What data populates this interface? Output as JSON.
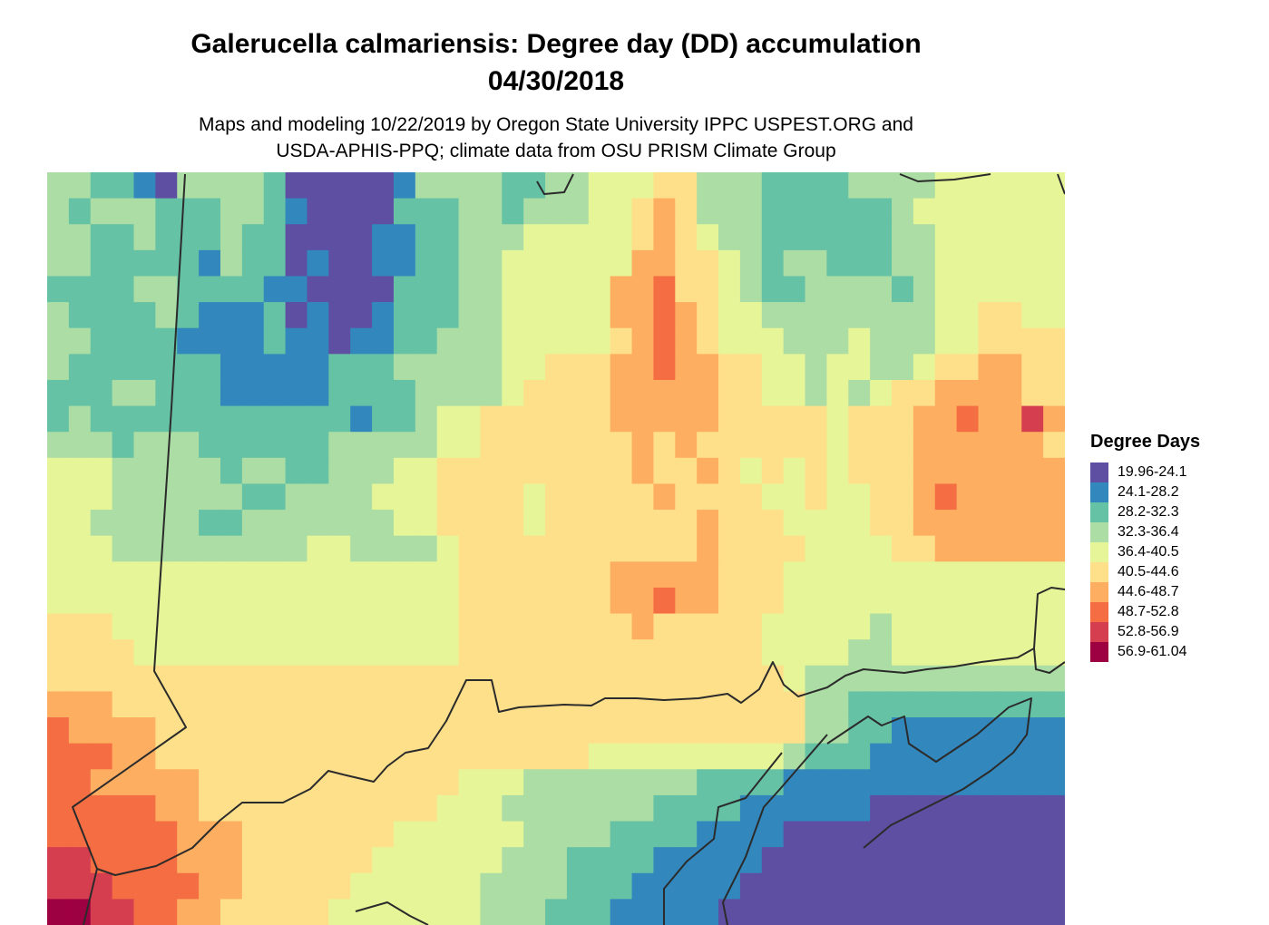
{
  "header": {
    "title_line1": "Galerucella calmariensis: Degree day (DD) accumulation",
    "title_line2": "04/30/2018",
    "subtitle_line1": "Maps and modeling 10/22/2019 by Oregon State University IPPC USPEST.ORG and",
    "subtitle_line2": "USDA-APHIS-PPQ; climate data from OSU PRISM Climate Group"
  },
  "legend": {
    "title": "Degree Days",
    "items": [
      {
        "label": "19.96-24.1",
        "color": "#5E4FA2"
      },
      {
        "label": "24.1-28.2",
        "color": "#3288BD"
      },
      {
        "label": "28.2-32.3",
        "color": "#66C2A5"
      },
      {
        "label": "32.3-36.4",
        "color": "#ABDDA4"
      },
      {
        "label": "36.4-40.5",
        "color": "#E6F598"
      },
      {
        "label": "40.5-44.6",
        "color": "#FEE08B"
      },
      {
        "label": "44.6-48.7",
        "color": "#FDAE61"
      },
      {
        "label": "48.7-52.8",
        "color": "#F46D43"
      },
      {
        "label": "52.8-56.9",
        "color": "#D53E4F"
      },
      {
        "label": "56.9-61.04",
        "color": "#9E0142"
      }
    ]
  },
  "map": {
    "grid_rows": [
      "33221033332000001333322334445533322223333444444",
      "32333222332100002223323334456533322222234444444",
      "33223222322000011223334444456543322222233444444",
      "33222221322010011223344444466554323322233444444",
      "22223322221100002223344444667554322333323444444",
      "32222321112010012223344444667654433333333445544",
      "33222211112110112233344444567654443334333445555",
      "32222222111112223333344555667665544344334556655",
      "22233222111112222333345555666665544343455666655",
      "23222222222222122344555555666665555545556676686",
      "33323332222223333344555555565655555545556666665",
      "44433333233223334455555555565565454545556666666",
      "44433333322333344455554555556555544544556766666",
      "44333332233333334455554555555565554444556666666",
      "44433333333344333345555555555565555444455666666",
      "44444444444444444445555555666665554444444444444",
      "44444444444444444445555555667665554444444444444",
      "55544444444444444445555555565555544444344444444",
      "55554444444444444445555555555555544443344444444",
      "55555555555555555555555555555555554333333333333",
      "66655555555555555555555555555555555332222222222",
      "76666555555555555555555555555555555332211111111",
      "77766555555555555555555554444444443222111111111",
      "77666665555555555554443333333322221111111111111",
      "77777665555555555544433333332222111111000000000",
      "77777766655555554444443333222211110000000000000",
      "88777766655555544444433322221111100000000000000",
      "88877776655555444444333322211111000000000000000",
      "99887766555554444444333222111110000000000000000"
    ]
  }
}
